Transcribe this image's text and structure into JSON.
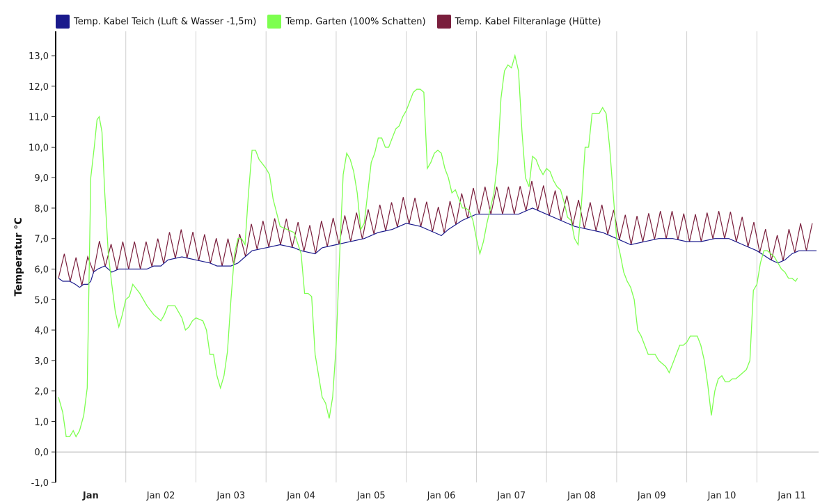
{
  "chart_data": {
    "type": "line",
    "title": "",
    "ylabel": "Temperatur °C",
    "xlabel": "",
    "ylim": [
      -1.0,
      13.8
    ],
    "yticks": [
      -1.0,
      0.0,
      1.0,
      2.0,
      3.0,
      4.0,
      5.0,
      6.0,
      7.0,
      8.0,
      9.0,
      10.0,
      11.0,
      12.0,
      13.0
    ],
    "ytick_labels": [
      "-1,0",
      "0,0",
      "1,0",
      "2,0",
      "3,0",
      "4,0",
      "5,0",
      "6,0",
      "7,0",
      "8,0",
      "9,0",
      "10,0",
      "11,0",
      "12,0",
      "13,0"
    ],
    "xlim_days": [
      0.5,
      11.38
    ],
    "x_tick_labels": [
      "Jan",
      "Jan 02",
      "Jan 03",
      "Jan 04",
      "Jan 05",
      "Jan 06",
      "Jan 07",
      "Jan 08",
      "Jan 09",
      "Jan 10",
      "Jan 11"
    ],
    "x_tick_days": [
      1,
      2,
      3,
      4,
      5,
      6,
      7,
      8,
      9,
      10,
      11
    ],
    "x_bold_first": true,
    "grid": "vertical lines at day boundaries, zero line",
    "legend_position": "top-left",
    "series": [
      {
        "name": "Temp. Kabel Teich (Luft & Wasser -1,5m)",
        "color": "#1a1a8c",
        "points": [
          [
            0.54,
            5.7
          ],
          [
            0.6,
            5.6
          ],
          [
            0.7,
            5.6
          ],
          [
            0.78,
            5.5
          ],
          [
            0.84,
            5.4
          ],
          [
            0.9,
            5.5
          ],
          [
            0.96,
            5.5
          ],
          [
            1.0,
            5.6
          ],
          [
            1.04,
            5.9
          ],
          [
            1.1,
            6.0
          ],
          [
            1.2,
            6.1
          ],
          [
            1.3,
            5.9
          ],
          [
            1.4,
            6.0
          ],
          [
            1.5,
            6.0
          ],
          [
            1.6,
            6.0
          ],
          [
            1.7,
            6.0
          ],
          [
            1.8,
            6.0
          ],
          [
            1.9,
            6.1
          ],
          [
            2.0,
            6.1
          ],
          [
            2.1,
            6.3
          ],
          [
            2.3,
            6.4
          ],
          [
            2.5,
            6.3
          ],
          [
            2.7,
            6.2
          ],
          [
            2.8,
            6.1
          ],
          [
            3.0,
            6.1
          ],
          [
            3.1,
            6.2
          ],
          [
            3.3,
            6.6
          ],
          [
            3.5,
            6.7
          ],
          [
            3.7,
            6.8
          ],
          [
            3.9,
            6.7
          ],
          [
            4.0,
            6.6
          ],
          [
            4.2,
            6.5
          ],
          [
            4.3,
            6.7
          ],
          [
            4.5,
            6.8
          ],
          [
            4.7,
            6.9
          ],
          [
            4.9,
            7.0
          ],
          [
            5.1,
            7.2
          ],
          [
            5.3,
            7.3
          ],
          [
            5.5,
            7.5
          ],
          [
            5.7,
            7.4
          ],
          [
            5.9,
            7.2
          ],
          [
            6.0,
            7.1
          ],
          [
            6.1,
            7.3
          ],
          [
            6.3,
            7.6
          ],
          [
            6.5,
            7.8
          ],
          [
            6.7,
            7.8
          ],
          [
            6.9,
            7.8
          ],
          [
            7.1,
            7.8
          ],
          [
            7.3,
            8.0
          ],
          [
            7.5,
            7.8
          ],
          [
            7.7,
            7.6
          ],
          [
            7.9,
            7.4
          ],
          [
            8.1,
            7.3
          ],
          [
            8.3,
            7.2
          ],
          [
            8.5,
            7.0
          ],
          [
            8.7,
            6.8
          ],
          [
            8.9,
            6.9
          ],
          [
            9.1,
            7.0
          ],
          [
            9.3,
            7.0
          ],
          [
            9.5,
            6.9
          ],
          [
            9.7,
            6.9
          ],
          [
            9.9,
            7.0
          ],
          [
            10.1,
            7.0
          ],
          [
            10.3,
            6.8
          ],
          [
            10.5,
            6.6
          ],
          [
            10.7,
            6.3
          ],
          [
            10.8,
            6.2
          ],
          [
            10.9,
            6.3
          ],
          [
            11.0,
            6.5
          ],
          [
            11.1,
            6.6
          ],
          [
            11.2,
            6.6
          ],
          [
            11.35,
            6.6
          ]
        ]
      },
      {
        "name": "Temp. Garten (100% Schatten)",
        "color": "#7dff4f",
        "points": [
          [
            0.54,
            1.8
          ],
          [
            0.6,
            1.3
          ],
          [
            0.65,
            0.5
          ],
          [
            0.7,
            0.5
          ],
          [
            0.75,
            0.7
          ],
          [
            0.79,
            0.5
          ],
          [
            0.84,
            0.7
          ],
          [
            0.9,
            1.2
          ],
          [
            0.95,
            2.1
          ],
          [
            1.0,
            9.0
          ],
          [
            1.05,
            10.0
          ],
          [
            1.09,
            10.9
          ],
          [
            1.12,
            11.0
          ],
          [
            1.16,
            10.5
          ],
          [
            1.2,
            8.5
          ],
          [
            1.25,
            6.5
          ],
          [
            1.3,
            5.5
          ],
          [
            1.35,
            4.6
          ],
          [
            1.4,
            4.1
          ],
          [
            1.45,
            4.5
          ],
          [
            1.5,
            5.0
          ],
          [
            1.55,
            5.1
          ],
          [
            1.6,
            5.5
          ],
          [
            1.7,
            5.2
          ],
          [
            1.8,
            4.8
          ],
          [
            1.9,
            4.5
          ],
          [
            2.0,
            4.3
          ],
          [
            2.05,
            4.5
          ],
          [
            2.1,
            4.8
          ],
          [
            2.2,
            4.8
          ],
          [
            2.3,
            4.4
          ],
          [
            2.35,
            4.0
          ],
          [
            2.4,
            4.1
          ],
          [
            2.45,
            4.3
          ],
          [
            2.5,
            4.4
          ],
          [
            2.6,
            4.3
          ],
          [
            2.65,
            4.0
          ],
          [
            2.7,
            3.2
          ],
          [
            2.75,
            3.2
          ],
          [
            2.8,
            2.5
          ],
          [
            2.85,
            2.1
          ],
          [
            2.9,
            2.5
          ],
          [
            2.95,
            3.3
          ],
          [
            3.0,
            5.0
          ],
          [
            3.05,
            6.5
          ],
          [
            3.1,
            7.0
          ],
          [
            3.15,
            7.0
          ],
          [
            3.2,
            6.8
          ],
          [
            3.25,
            8.5
          ],
          [
            3.3,
            9.9
          ],
          [
            3.35,
            9.9
          ],
          [
            3.4,
            9.6
          ],
          [
            3.5,
            9.3
          ],
          [
            3.55,
            9.1
          ],
          [
            3.6,
            8.3
          ],
          [
            3.7,
            7.4
          ],
          [
            3.8,
            7.3
          ],
          [
            3.9,
            7.2
          ],
          [
            4.0,
            6.5
          ],
          [
            4.05,
            5.2
          ],
          [
            4.1,
            5.2
          ],
          [
            4.15,
            5.1
          ],
          [
            4.2,
            3.2
          ],
          [
            4.25,
            2.5
          ],
          [
            4.3,
            1.8
          ],
          [
            4.35,
            1.6
          ],
          [
            4.4,
            1.1
          ],
          [
            4.45,
            1.8
          ],
          [
            4.5,
            3.5
          ],
          [
            4.55,
            6.5
          ],
          [
            4.6,
            9.1
          ],
          [
            4.65,
            9.8
          ],
          [
            4.7,
            9.6
          ],
          [
            4.75,
            9.2
          ],
          [
            4.8,
            8.5
          ],
          [
            4.85,
            7.3
          ],
          [
            4.9,
            7.5
          ],
          [
            4.95,
            8.5
          ],
          [
            5.0,
            9.5
          ],
          [
            5.05,
            9.8
          ],
          [
            5.1,
            10.3
          ],
          [
            5.15,
            10.3
          ],
          [
            5.2,
            10.0
          ],
          [
            5.25,
            10.0
          ],
          [
            5.3,
            10.3
          ],
          [
            5.35,
            10.6
          ],
          [
            5.4,
            10.7
          ],
          [
            5.45,
            11.0
          ],
          [
            5.5,
            11.2
          ],
          [
            5.55,
            11.5
          ],
          [
            5.6,
            11.8
          ],
          [
            5.65,
            11.9
          ],
          [
            5.7,
            11.9
          ],
          [
            5.75,
            11.8
          ],
          [
            5.8,
            9.3
          ],
          [
            5.85,
            9.5
          ],
          [
            5.9,
            9.8
          ],
          [
            5.95,
            9.9
          ],
          [
            6.0,
            9.8
          ],
          [
            6.05,
            9.3
          ],
          [
            6.1,
            9.0
          ],
          [
            6.15,
            8.5
          ],
          [
            6.2,
            8.6
          ],
          [
            6.25,
            8.3
          ],
          [
            6.3,
            8.0
          ],
          [
            6.35,
            8.0
          ],
          [
            6.4,
            7.9
          ],
          [
            6.45,
            7.6
          ],
          [
            6.5,
            7.0
          ],
          [
            6.55,
            6.5
          ],
          [
            6.6,
            6.9
          ],
          [
            6.65,
            7.5
          ],
          [
            6.7,
            8.0
          ],
          [
            6.75,
            8.5
          ],
          [
            6.8,
            9.5
          ],
          [
            6.85,
            11.6
          ],
          [
            6.9,
            12.5
          ],
          [
            6.95,
            12.7
          ],
          [
            7.0,
            12.6
          ],
          [
            7.05,
            13.0
          ],
          [
            7.1,
            12.5
          ],
          [
            7.15,
            10.5
          ],
          [
            7.2,
            9.0
          ],
          [
            7.25,
            8.7
          ],
          [
            7.3,
            9.7
          ],
          [
            7.35,
            9.6
          ],
          [
            7.4,
            9.3
          ],
          [
            7.45,
            9.1
          ],
          [
            7.5,
            9.3
          ],
          [
            7.55,
            9.2
          ],
          [
            7.6,
            8.9
          ],
          [
            7.65,
            8.7
          ],
          [
            7.7,
            8.6
          ],
          [
            7.75,
            8.2
          ],
          [
            7.8,
            7.7
          ],
          [
            7.85,
            7.6
          ],
          [
            7.9,
            7.0
          ],
          [
            7.95,
            6.8
          ],
          [
            8.0,
            8.2
          ],
          [
            8.05,
            10.0
          ],
          [
            8.1,
            10.0
          ],
          [
            8.15,
            11.1
          ],
          [
            8.2,
            11.1
          ],
          [
            8.25,
            11.1
          ],
          [
            8.3,
            11.3
          ],
          [
            8.35,
            11.1
          ],
          [
            8.4,
            10.0
          ],
          [
            8.45,
            8.5
          ],
          [
            8.5,
            7.0
          ],
          [
            8.55,
            6.5
          ],
          [
            8.6,
            5.9
          ],
          [
            8.65,
            5.6
          ],
          [
            8.7,
            5.4
          ],
          [
            8.75,
            5.0
          ],
          [
            8.8,
            4.0
          ],
          [
            8.85,
            3.8
          ],
          [
            8.9,
            3.5
          ],
          [
            8.95,
            3.2
          ],
          [
            9.0,
            3.2
          ],
          [
            9.05,
            3.2
          ],
          [
            9.1,
            3.0
          ],
          [
            9.15,
            2.9
          ],
          [
            9.2,
            2.8
          ],
          [
            9.25,
            2.6
          ],
          [
            9.3,
            2.9
          ],
          [
            9.35,
            3.2
          ],
          [
            9.4,
            3.5
          ],
          [
            9.45,
            3.5
          ],
          [
            9.5,
            3.6
          ],
          [
            9.55,
            3.8
          ],
          [
            9.6,
            3.8
          ],
          [
            9.65,
            3.8
          ],
          [
            9.7,
            3.5
          ],
          [
            9.75,
            3.0
          ],
          [
            9.8,
            2.2
          ],
          [
            9.85,
            1.2
          ],
          [
            9.9,
            2.0
          ],
          [
            9.95,
            2.4
          ],
          [
            10.0,
            2.5
          ],
          [
            10.05,
            2.3
          ],
          [
            10.1,
            2.3
          ],
          [
            10.15,
            2.4
          ],
          [
            10.2,
            2.4
          ],
          [
            10.25,
            2.5
          ],
          [
            10.3,
            2.6
          ],
          [
            10.35,
            2.7
          ],
          [
            10.4,
            3.0
          ],
          [
            10.45,
            5.3
          ],
          [
            10.5,
            5.5
          ],
          [
            10.55,
            6.2
          ],
          [
            10.6,
            6.6
          ],
          [
            10.65,
            6.6
          ],
          [
            10.7,
            6.5
          ],
          [
            10.75,
            6.4
          ],
          [
            10.8,
            6.2
          ],
          [
            10.85,
            6.0
          ],
          [
            10.9,
            5.9
          ],
          [
            10.95,
            5.7
          ],
          [
            11.0,
            5.7
          ],
          [
            11.05,
            5.6
          ],
          [
            11.08,
            5.7
          ]
        ]
      },
      {
        "name": "Temp. Kabel Filteranlage (Hütte)",
        "color": "#7a1f3d",
        "points": []
      }
    ]
  },
  "legend": {
    "items": [
      {
        "label": "Temp. Kabel Teich (Luft & Wasser -1,5m)",
        "color": "#1a1a8c"
      },
      {
        "label": "Temp. Garten (100% Schatten)",
        "color": "#7dff4f"
      },
      {
        "label": "Temp. Kabel Filteranlage (Hütte)",
        "color": "#7a1f3d"
      }
    ]
  }
}
